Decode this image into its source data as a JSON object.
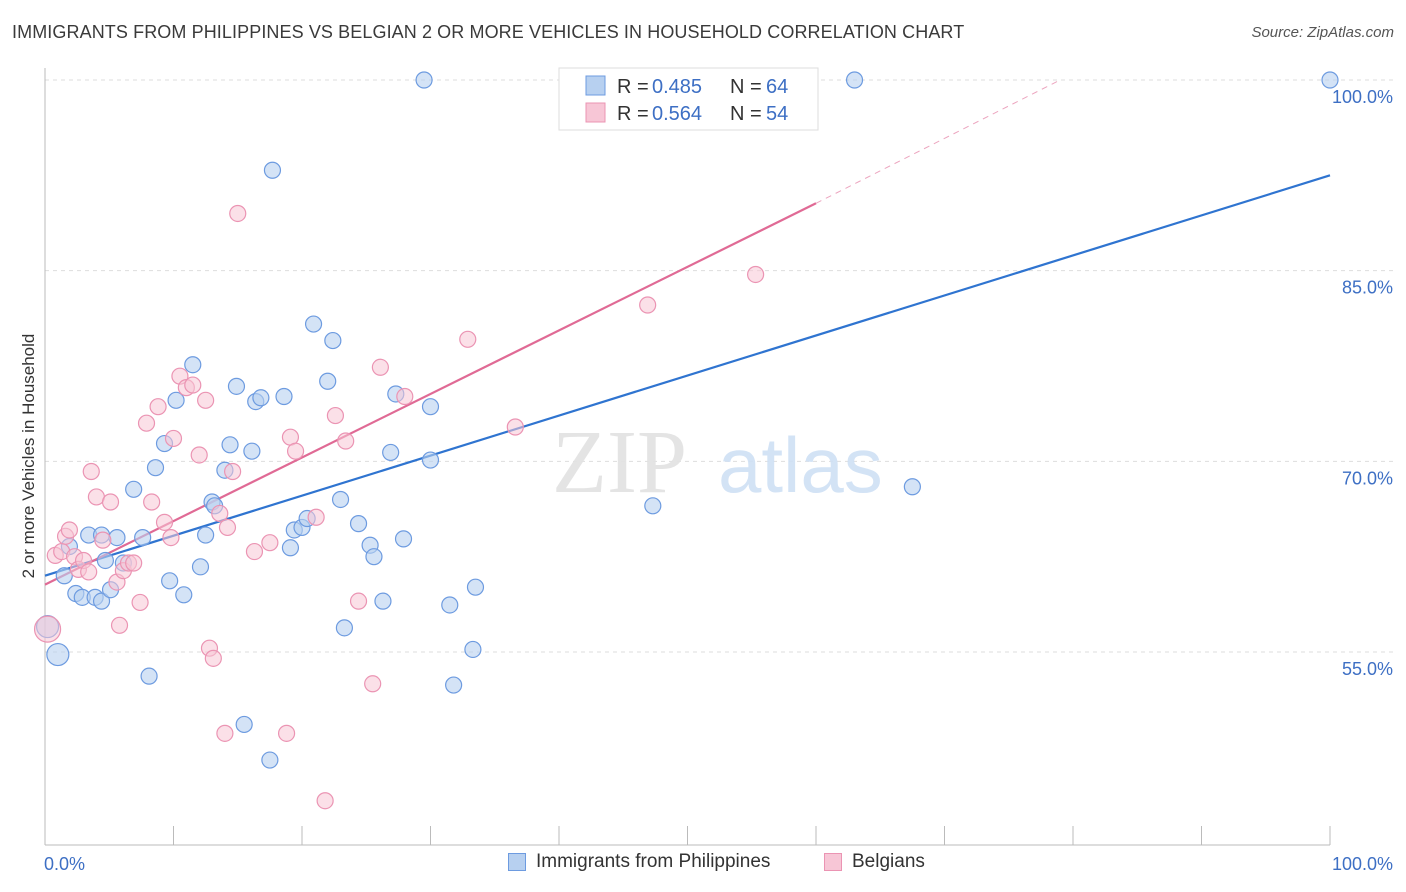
{
  "header": {
    "title": "IMMIGRANTS FROM PHILIPPINES VS BELGIAN 2 OR MORE VEHICLES IN HOUSEHOLD CORRELATION CHART",
    "source": "Source: ZipAtlas.com"
  },
  "watermark": {
    "zip": "ZIP",
    "atlas": "atlas"
  },
  "colors": {
    "blue": "#2f74d0",
    "blue_fill": "#b7d0f0",
    "blue_stroke": "#6d9be0",
    "pink": "#e06a95",
    "pink_fill": "#f7c6d6",
    "pink_stroke": "#eb94b3",
    "grid": "#dddddd",
    "axis_text": "#3d6fc4"
  },
  "legend": {
    "rows": [
      {
        "r_label": "R =",
        "r_value": "0.485",
        "n_label": "N =",
        "n_value": "64"
      },
      {
        "r_label": "R =",
        "r_value": "0.564",
        "n_label": "N =",
        "n_value": "54"
      }
    ]
  },
  "bottom_legend": [
    {
      "label": "Immigrants from Philippines"
    },
    {
      "label": "Belgians"
    }
  ],
  "chart_data": {
    "type": "scatter",
    "ylabel": "2 or more Vehicles in Household",
    "xlabel": "",
    "xlim": [
      0,
      100
    ],
    "ylim": [
      37.5,
      100
    ],
    "x_tick_labels": [
      "0.0%",
      "100.0%"
    ],
    "y_ticks": [
      55,
      70,
      85,
      100
    ],
    "y_tick_labels": [
      "55.0%",
      "70.0%",
      "85.0%",
      "100.0%"
    ],
    "grid": true,
    "legend_position": "top-center",
    "series": [
      {
        "name": "Immigrants from Philippines",
        "r": 0.485,
        "n": 64,
        "trend": {
          "x": [
            0,
            100
          ],
          "y": [
            61.0,
            92.5
          ]
        },
        "points": [
          [
            0.2,
            57.0
          ],
          [
            1.0,
            54.8
          ],
          [
            1.5,
            61.0
          ],
          [
            1.9,
            63.3
          ],
          [
            2.4,
            59.6
          ],
          [
            2.9,
            59.3
          ],
          [
            3.4,
            64.2
          ],
          [
            3.9,
            59.3
          ],
          [
            4.4,
            59.0
          ],
          [
            4.4,
            64.2
          ],
          [
            4.7,
            62.2
          ],
          [
            5.1,
            59.9
          ],
          [
            5.6,
            64.0
          ],
          [
            6.1,
            62.0
          ],
          [
            6.9,
            67.8
          ],
          [
            7.6,
            64.0
          ],
          [
            8.1,
            53.1
          ],
          [
            8.6,
            69.5
          ],
          [
            9.3,
            71.4
          ],
          [
            9.7,
            60.6
          ],
          [
            10.2,
            74.8
          ],
          [
            10.8,
            59.5
          ],
          [
            11.5,
            77.6
          ],
          [
            12.1,
            61.7
          ],
          [
            12.5,
            64.2
          ],
          [
            13.0,
            66.8
          ],
          [
            13.2,
            66.5
          ],
          [
            14.0,
            69.3
          ],
          [
            14.4,
            71.3
          ],
          [
            14.9,
            75.9
          ],
          [
            15.5,
            49.3
          ],
          [
            16.1,
            70.8
          ],
          [
            16.4,
            74.7
          ],
          [
            16.8,
            75.0
          ],
          [
            17.5,
            46.5
          ],
          [
            17.7,
            92.9
          ],
          [
            18.6,
            75.1
          ],
          [
            19.1,
            63.2
          ],
          [
            19.4,
            64.6
          ],
          [
            20.0,
            64.8
          ],
          [
            20.4,
            65.5
          ],
          [
            20.9,
            80.8
          ],
          [
            22.0,
            76.3
          ],
          [
            22.4,
            79.5
          ],
          [
            23.0,
            67.0
          ],
          [
            23.3,
            56.9
          ],
          [
            24.4,
            65.1
          ],
          [
            25.3,
            63.4
          ],
          [
            25.6,
            62.5
          ],
          [
            26.3,
            59.0
          ],
          [
            26.9,
            70.7
          ],
          [
            27.3,
            75.3
          ],
          [
            27.9,
            63.9
          ],
          [
            29.5,
            100.0
          ],
          [
            30.0,
            70.1
          ],
          [
            30.0,
            74.3
          ],
          [
            31.5,
            58.7
          ],
          [
            31.8,
            52.4
          ],
          [
            33.3,
            55.2
          ],
          [
            33.5,
            60.1
          ],
          [
            47.3,
            66.5
          ],
          [
            63.0,
            100.0
          ],
          [
            67.5,
            68.0
          ],
          [
            100.0,
            100.0
          ]
        ]
      },
      {
        "name": "Belgians",
        "r": 0.564,
        "n": 54,
        "trend": {
          "x": [
            0,
            60
          ],
          "y": [
            60.3,
            90.3
          ]
        },
        "trend_dashed_extension": {
          "x": [
            60,
            79
          ],
          "y": [
            90.3,
            100
          ]
        },
        "points": [
          [
            0.2,
            56.8
          ],
          [
            0.8,
            62.6
          ],
          [
            1.3,
            62.9
          ],
          [
            1.6,
            64.1
          ],
          [
            1.9,
            64.6
          ],
          [
            2.3,
            62.5
          ],
          [
            2.6,
            61.5
          ],
          [
            3.0,
            62.2
          ],
          [
            3.4,
            61.3
          ],
          [
            3.6,
            69.2
          ],
          [
            4.0,
            67.2
          ],
          [
            4.5,
            63.8
          ],
          [
            5.1,
            66.8
          ],
          [
            5.6,
            60.5
          ],
          [
            5.8,
            57.1
          ],
          [
            6.1,
            61.4
          ],
          [
            6.5,
            62.0
          ],
          [
            6.9,
            62.0
          ],
          [
            7.4,
            58.9
          ],
          [
            7.9,
            73.0
          ],
          [
            8.3,
            66.8
          ],
          [
            8.8,
            74.3
          ],
          [
            9.3,
            65.2
          ],
          [
            9.8,
            64.0
          ],
          [
            10.0,
            71.8
          ],
          [
            10.5,
            76.7
          ],
          [
            11.0,
            75.8
          ],
          [
            11.5,
            76.0
          ],
          [
            12.0,
            70.5
          ],
          [
            12.5,
            74.8
          ],
          [
            12.8,
            55.3
          ],
          [
            13.1,
            54.5
          ],
          [
            13.6,
            65.9
          ],
          [
            14.0,
            48.6
          ],
          [
            14.2,
            64.8
          ],
          [
            14.6,
            69.2
          ],
          [
            15.0,
            89.5
          ],
          [
            16.3,
            62.9
          ],
          [
            17.5,
            63.6
          ],
          [
            18.8,
            48.6
          ],
          [
            19.1,
            71.9
          ],
          [
            19.5,
            70.8
          ],
          [
            21.1,
            65.6
          ],
          [
            21.8,
            43.3
          ],
          [
            22.6,
            73.6
          ],
          [
            23.4,
            71.6
          ],
          [
            24.4,
            59.0
          ],
          [
            25.5,
            52.5
          ],
          [
            26.1,
            77.4
          ],
          [
            28.0,
            75.1
          ],
          [
            32.9,
            79.6
          ],
          [
            36.6,
            72.7
          ],
          [
            46.9,
            82.3
          ],
          [
            55.3,
            84.7
          ]
        ]
      }
    ]
  }
}
